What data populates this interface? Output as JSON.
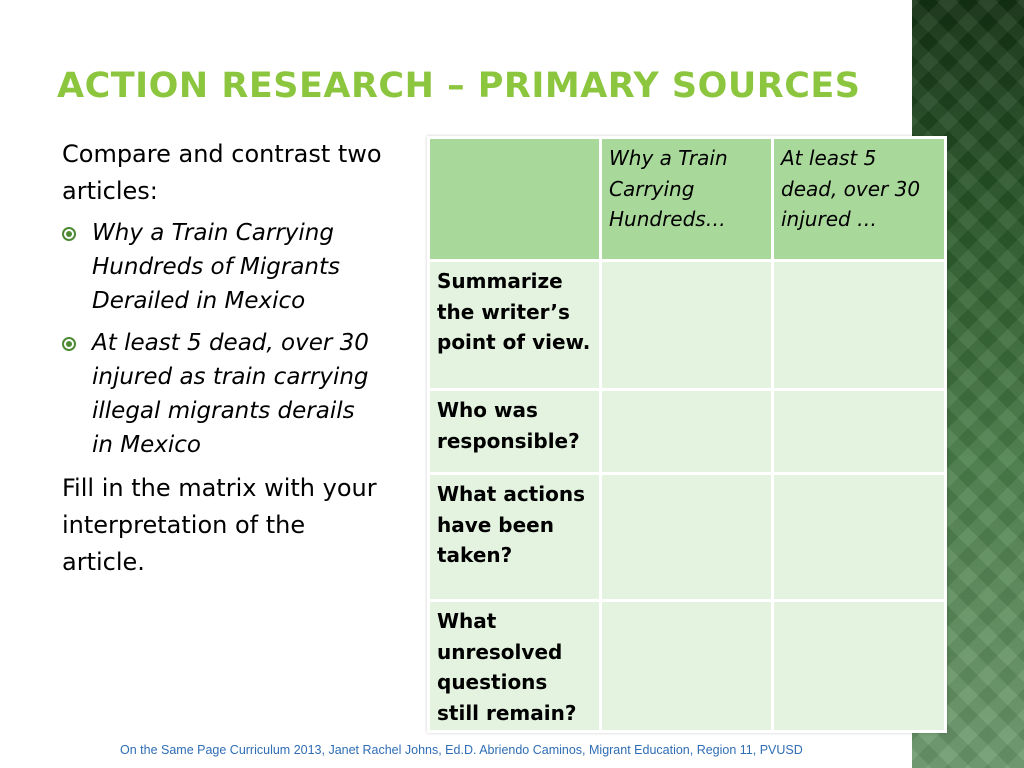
{
  "slide": {
    "title": "ACTION RESEARCH – PRIMARY SOURCES",
    "intro": "Compare and contrast two articles:",
    "bullets": [
      "Why a Train Carrying Hundreds of Migrants Derailed in Mexico",
      "At least 5 dead, over 30 injured as train carrying illegal migrants derails in Mexico"
    ],
    "instruction": "Fill in the matrix with your interpretation of the article.",
    "footer": "On the Same Page Curriculum 2013, Janet Rachel Johns, Ed.D. Abriendo Caminos, Migrant Education, Region 11, PVUSD"
  },
  "table": {
    "headers": [
      "",
      "Why a Train Carrying Hundreds…",
      "At least 5 dead, over 30 injured …"
    ],
    "rows": [
      {
        "label": "Summarize the writer’s point of view.",
        "cells": [
          "",
          ""
        ]
      },
      {
        "label": "Who was responsible?",
        "cells": [
          "",
          ""
        ]
      },
      {
        "label": "What actions have been taken?",
        "cells": [
          "",
          ""
        ]
      },
      {
        "label": "What unresolved questions still remain?",
        "cells": [
          "",
          ""
        ]
      }
    ]
  },
  "colors": {
    "title": "#8cc63f",
    "header_fill": "#a9d99a",
    "cell_fill": "#e3f3df",
    "bullet": "#4e8a34",
    "footer_text": "#2f6db5",
    "side_band": "#2b5a2b"
  }
}
